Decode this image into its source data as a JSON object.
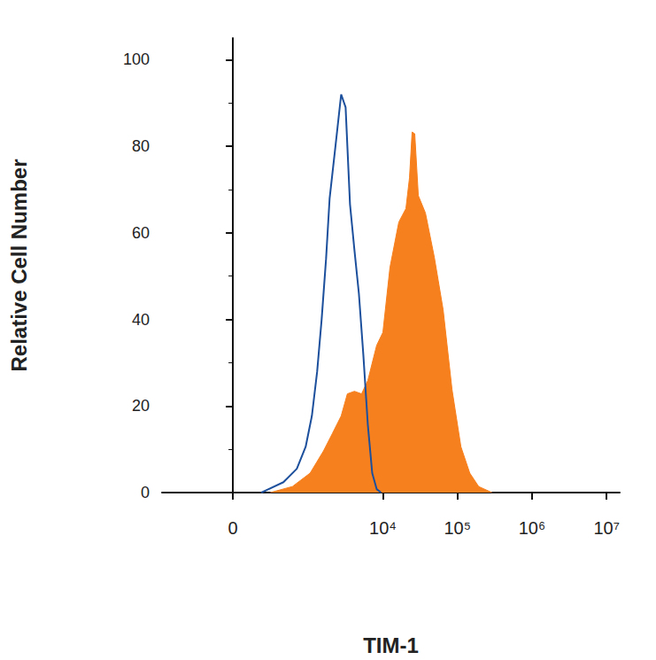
{
  "chart_data": {
    "type": "line",
    "x_label": "TIM-1",
    "y_label": "Relative Cell Number",
    "xlim": [
      -860,
      15000000
    ],
    "ylim": [
      0,
      105
    ],
    "xticks": [
      0,
      {
        "value": 10000,
        "label": "10⁴"
      },
      {
        "value": 100000,
        "label": "10⁵"
      },
      {
        "value": 1000000,
        "label": "10⁶"
      },
      {
        "value": 10000000,
        "label": "10⁷"
      }
    ],
    "yticks": [
      0,
      20,
      40,
      60,
      80,
      100
    ],
    "grid": false,
    "series": [
      {
        "type": "area",
        "color": "#f7801e",
        "x": [
          278,
          597,
          1049,
          1591,
          2092,
          2755,
          3335,
          4154,
          5177,
          6280,
          8250,
          10000,
          12440,
          16360,
          20360,
          22740,
          24670,
          26770,
          29890,
          37230,
          48950,
          64350,
          84630,
          111300,
          146400,
          192700,
          290600
        ],
        "values": [
          0,
          1.4,
          4.5,
          9.6,
          13.6,
          17.7,
          22.8,
          23.4,
          22.8,
          25.9,
          34,
          37,
          52,
          62.5,
          65.6,
          72.7,
          83.3,
          82.9,
          68.6,
          64.6,
          54.4,
          42.2,
          23.8,
          10.6,
          4.5,
          1.4,
          0
        ]
      },
      {
        "type": "line",
        "color": "#1c4f9c",
        "x": [
          194,
          234,
          444,
          688,
          912,
          1108,
          1308,
          1503,
          1725,
          1927,
          2273,
          2755,
          3161,
          3622,
          4154,
          4765,
          5460,
          6280,
          7195,
          8250,
          9460
        ],
        "values": [
          0,
          0.5,
          2.4,
          5.5,
          10.6,
          17.7,
          28,
          40,
          54,
          68,
          79,
          92,
          89,
          66.6,
          56,
          46,
          32,
          15.7,
          4.5,
          0.8,
          0
        ]
      }
    ]
  }
}
